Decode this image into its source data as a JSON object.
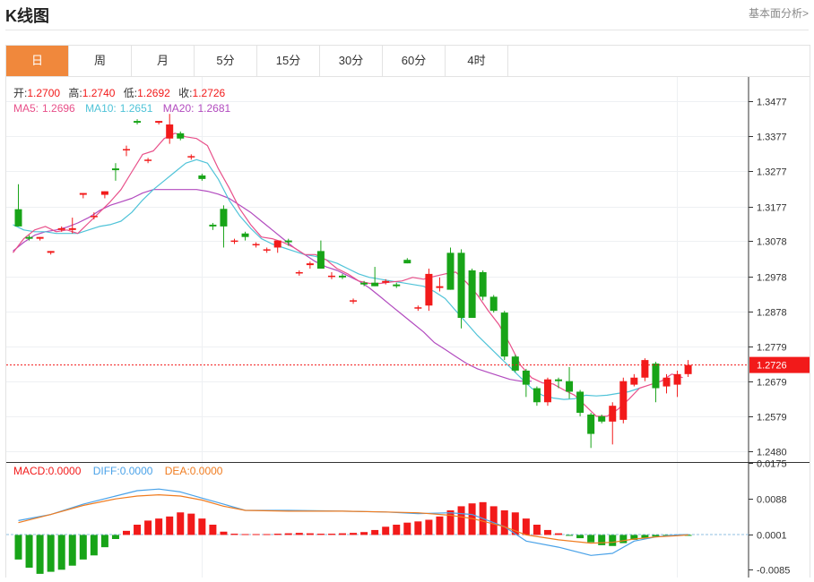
{
  "page": {
    "title": "K线图",
    "link": "基本面分析>"
  },
  "tabs": [
    "日",
    "周",
    "月",
    "5分",
    "15分",
    "30分",
    "60分",
    "4时"
  ],
  "active_tab": 0,
  "colors": {
    "up": "#f21a1a",
    "down": "#18a418",
    "ma5": "#e8508a",
    "ma10": "#4fc3d8",
    "ma20": "#b24bbf",
    "dif": "#4aa2e8",
    "dea": "#f07c20",
    "accent": "#f0883c"
  },
  "ohlc_info": {
    "open_label": "开:",
    "open": "1.2700",
    "high_label": "高:",
    "high": "1.2740",
    "low_label": "低:",
    "low": "1.2692",
    "close_label": "收:",
    "close": "1.2726"
  },
  "ma_info": {
    "ma5_label": "MA5:",
    "ma5": "1.2696",
    "ma10_label": "MA10:",
    "ma10": "1.2651",
    "ma20_label": "MA20:",
    "ma20": "1.2681"
  },
  "macd_info": {
    "macd_label": "MACD:",
    "macd": "0.0000",
    "diff_label": "DIFF:",
    "diff": "0.0000",
    "dea_label": "DEA:",
    "dea": "0.0000"
  },
  "chart_data": [
    {
      "type": "candlestick",
      "y_ticks": [
        "1.3477",
        "1.3377",
        "1.3277",
        "1.3177",
        "1.3078",
        "1.2978",
        "1.2878",
        "1.2779",
        "1.2679",
        "1.2579",
        "1.2480"
      ],
      "ylim": [
        1.245,
        1.3545
      ],
      "current_price": "1.2726",
      "candles": [
        [
          1.3169,
          1.324,
          1.312,
          1.312
        ],
        [
          1.309,
          1.3095,
          1.308,
          1.3085
        ],
        [
          1.3085,
          1.309,
          1.308,
          1.309
        ],
        [
          1.3045,
          1.305,
          1.304,
          1.305
        ],
        [
          1.311,
          1.312,
          1.3105,
          1.3115
        ],
        [
          1.311,
          1.3145,
          1.31,
          1.3115
        ],
        [
          1.321,
          1.3215,
          1.32,
          1.3215
        ],
        [
          1.315,
          1.316,
          1.314,
          1.315
        ],
        [
          1.321,
          1.322,
          1.32,
          1.322
        ],
        [
          1.3285,
          1.33,
          1.325,
          1.328
        ],
        [
          1.334,
          1.335,
          1.332,
          1.334
        ],
        [
          1.342,
          1.3425,
          1.341,
          1.3415
        ],
        [
          1.331,
          1.3315,
          1.33,
          1.331
        ],
        [
          1.3415,
          1.342,
          1.341,
          1.342
        ],
        [
          1.337,
          1.344,
          1.3355,
          1.341
        ],
        [
          1.3385,
          1.339,
          1.3365,
          1.337
        ],
        [
          1.332,
          1.3325,
          1.331,
          1.332
        ],
        [
          1.3265,
          1.327,
          1.325,
          1.3255
        ],
        [
          1.3125,
          1.313,
          1.311,
          1.312
        ],
        [
          1.317,
          1.318,
          1.306,
          1.312
        ],
        [
          1.308,
          1.3085,
          1.307,
          1.308
        ],
        [
          1.31,
          1.3105,
          1.308,
          1.309
        ],
        [
          1.307,
          1.3075,
          1.306,
          1.307
        ],
        [
          1.3055,
          1.306,
          1.3045,
          1.3055
        ],
        [
          1.306,
          1.3075,
          1.3045,
          1.308
        ],
        [
          1.308,
          1.3085,
          1.3065,
          1.3075
        ],
        [
          1.299,
          1.2995,
          1.298,
          1.299
        ],
        [
          1.301,
          1.302,
          1.3,
          1.3015
        ],
        [
          1.305,
          1.308,
          1.3,
          1.3
        ],
        [
          1.298,
          1.299,
          1.297,
          1.298
        ],
        [
          1.298,
          1.2985,
          1.297,
          1.2975
        ],
        [
          1.291,
          1.2915,
          1.29,
          1.291
        ],
        [
          1.296,
          1.2965,
          1.295,
          1.2955
        ],
        [
          1.296,
          1.3005,
          1.295,
          1.295
        ],
        [
          1.296,
          1.297,
          1.2955,
          1.2965
        ],
        [
          1.2955,
          1.296,
          1.2945,
          1.295
        ],
        [
          1.3025,
          1.303,
          1.3015,
          1.3015
        ],
        [
          1.289,
          1.2895,
          1.288,
          1.289
        ],
        [
          1.2895,
          1.3,
          1.288,
          1.2985
        ],
        [
          1.2945,
          1.2975,
          1.2935,
          1.295
        ],
        [
          1.3045,
          1.306,
          1.294,
          1.294
        ],
        [
          1.3045,
          1.3055,
          1.283,
          1.286
        ],
        [
          1.2995,
          1.3,
          1.286,
          1.286
        ],
        [
          1.299,
          1.2995,
          1.291,
          1.292
        ],
        [
          1.292,
          1.2925,
          1.2875,
          1.288
        ],
        [
          1.2875,
          1.288,
          1.274,
          1.275
        ],
        [
          1.275,
          1.2755,
          1.2705,
          1.271
        ],
        [
          1.271,
          1.2715,
          1.2635,
          1.267
        ],
        [
          1.266,
          1.2665,
          1.261,
          1.262
        ],
        [
          1.262,
          1.269,
          1.261,
          1.2685
        ],
        [
          1.2685,
          1.269,
          1.266,
          1.268
        ],
        [
          1.268,
          1.272,
          1.263,
          1.265
        ],
        [
          1.265,
          1.2655,
          1.258,
          1.259
        ],
        [
          1.2585,
          1.259,
          1.249,
          1.253
        ],
        [
          1.258,
          1.2585,
          1.256,
          1.2565
        ],
        [
          1.2565,
          1.262,
          1.25,
          1.261
        ],
        [
          1.257,
          1.269,
          1.256,
          1.268
        ],
        [
          1.267,
          1.27,
          1.2665,
          1.269
        ],
        [
          1.269,
          1.2745,
          1.268,
          1.274
        ],
        [
          1.273,
          1.2735,
          1.262,
          1.266
        ],
        [
          1.2665,
          1.27,
          1.2645,
          1.269
        ],
        [
          1.267,
          1.271,
          1.2635,
          1.27
        ],
        [
          1.27,
          1.274,
          1.2692,
          1.2726
        ]
      ],
      "ma5": [
        [
          -0.5,
          1.3045
        ],
        [
          0.5,
          1.3085
        ],
        [
          1.5,
          1.311
        ],
        [
          2.5,
          1.312
        ],
        [
          3.5,
          1.3105
        ],
        [
          4.5,
          1.311
        ],
        [
          5.5,
          1.31
        ],
        [
          6.5,
          1.313
        ],
        [
          7.5,
          1.316
        ],
        [
          8.5,
          1.319
        ],
        [
          9.5,
          1.3225
        ],
        [
          10.5,
          1.3275
        ],
        [
          11.5,
          1.3325
        ],
        [
          12.5,
          1.3335
        ],
        [
          13.5,
          1.337
        ],
        [
          14.5,
          1.3385
        ],
        [
          15.5,
          1.3375
        ],
        [
          16.5,
          1.337
        ],
        [
          17.5,
          1.335
        ],
        [
          18.5,
          1.3285
        ],
        [
          19.5,
          1.323
        ],
        [
          20.5,
          1.317
        ],
        [
          21.5,
          1.3125
        ],
        [
          22.5,
          1.309
        ],
        [
          23.5,
          1.3085
        ],
        [
          24.5,
          1.3075
        ],
        [
          25.5,
          1.306
        ],
        [
          26.5,
          1.304
        ],
        [
          27.5,
          1.304
        ],
        [
          28.5,
          1.3025
        ],
        [
          29.5,
          1.3
        ],
        [
          30.5,
          1.2985
        ],
        [
          31.5,
          1.2965
        ],
        [
          32.5,
          1.2958
        ],
        [
          33.5,
          1.2958
        ],
        [
          34.5,
          1.2962
        ],
        [
          35.5,
          1.2965
        ],
        [
          36.5,
          1.2975
        ],
        [
          37.5,
          1.297
        ],
        [
          38.5,
          1.2978
        ],
        [
          39.5,
          1.2985
        ],
        [
          40.5,
          1.299
        ],
        [
          41.5,
          1.296
        ],
        [
          42.5,
          1.2925
        ],
        [
          43.5,
          1.288
        ],
        [
          44.5,
          1.284
        ],
        [
          45.5,
          1.2785
        ],
        [
          46.5,
          1.2725
        ],
        [
          47.5,
          1.269
        ],
        [
          48.5,
          1.2675
        ],
        [
          49.5,
          1.2672
        ],
        [
          50.5,
          1.2655
        ],
        [
          51.5,
          1.264
        ],
        [
          52.5,
          1.261
        ],
        [
          53.5,
          1.258
        ],
        [
          54.5,
          1.258
        ],
        [
          55.5,
          1.26
        ],
        [
          56.5,
          1.2628
        ],
        [
          57.5,
          1.266
        ],
        [
          58.5,
          1.267
        ],
        [
          59.5,
          1.268
        ],
        [
          60.5,
          1.27
        ],
        [
          61.5,
          1.269
        ]
      ],
      "ma10": [
        [
          -0.5,
          1.3125
        ],
        [
          0.5,
          1.311
        ],
        [
          1.5,
          1.3105
        ],
        [
          2.5,
          1.3105
        ],
        [
          3.5,
          1.31
        ],
        [
          4.5,
          1.31
        ],
        [
          5.5,
          1.31
        ],
        [
          6.5,
          1.311
        ],
        [
          7.5,
          1.312
        ],
        [
          8.5,
          1.3125
        ],
        [
          9.5,
          1.3135
        ],
        [
          10.5,
          1.316
        ],
        [
          11.5,
          1.3195
        ],
        [
          12.5,
          1.3225
        ],
        [
          13.5,
          1.325
        ],
        [
          14.5,
          1.3275
        ],
        [
          15.5,
          1.33
        ],
        [
          16.5,
          1.331
        ],
        [
          17.5,
          1.33
        ],
        [
          18.5,
          1.3255
        ],
        [
          19.5,
          1.3195
        ],
        [
          20.5,
          1.315
        ],
        [
          21.5,
          1.3115
        ],
        [
          22.5,
          1.3085
        ],
        [
          23.5,
          1.307
        ],
        [
          24.5,
          1.306
        ],
        [
          25.5,
          1.305
        ],
        [
          26.5,
          1.304
        ],
        [
          27.5,
          1.3035
        ],
        [
          28.5,
          1.3025
        ],
        [
          29.5,
          1.3015
        ],
        [
          30.5,
          1.3
        ],
        [
          31.5,
          1.2985
        ],
        [
          32.5,
          1.2975
        ],
        [
          33.5,
          1.297
        ],
        [
          34.5,
          1.2965
        ],
        [
          35.5,
          1.296
        ],
        [
          36.5,
          1.2955
        ],
        [
          37.5,
          1.295
        ],
        [
          38.5,
          1.2935
        ],
        [
          39.5,
          1.2915
        ],
        [
          40.5,
          1.288
        ],
        [
          41.5,
          1.2845
        ],
        [
          42.5,
          1.281
        ],
        [
          43.5,
          1.278
        ],
        [
          44.5,
          1.275
        ],
        [
          45.5,
          1.272
        ],
        [
          46.5,
          1.269
        ],
        [
          47.5,
          1.266
        ],
        [
          48.5,
          1.264
        ],
        [
          49.5,
          1.2632
        ],
        [
          50.5,
          1.2628
        ],
        [
          51.5,
          1.263
        ],
        [
          52.5,
          1.264
        ],
        [
          53.5,
          1.2638
        ],
        [
          54.5,
          1.264
        ],
        [
          55.5,
          1.2645
        ],
        [
          56.5,
          1.265
        ],
        [
          57.5,
          1.266
        ]
      ],
      "ma20": [
        [
          -0.5,
          1.305
        ],
        [
          0.5,
          1.3075
        ],
        [
          1.5,
          1.3095
        ],
        [
          2.5,
          1.3105
        ],
        [
          3.5,
          1.311
        ],
        [
          4.5,
          1.3118
        ],
        [
          5.5,
          1.313
        ],
        [
          6.5,
          1.3145
        ],
        [
          7.5,
          1.3165
        ],
        [
          8.5,
          1.318
        ],
        [
          9.5,
          1.319
        ],
        [
          10.5,
          1.32
        ],
        [
          11.5,
          1.3215
        ],
        [
          12.5,
          1.3225
        ],
        [
          13.5,
          1.3225
        ],
        [
          14.5,
          1.3225
        ],
        [
          15.5,
          1.3225
        ],
        [
          16.5,
          1.3225
        ],
        [
          17.5,
          1.322
        ],
        [
          18.5,
          1.3212
        ],
        [
          19.5,
          1.32
        ],
        [
          20.5,
          1.318
        ],
        [
          21.5,
          1.316
        ],
        [
          22.5,
          1.3135
        ],
        [
          23.5,
          1.311
        ],
        [
          24.5,
          1.3085
        ],
        [
          25.5,
          1.306
        ],
        [
          26.5,
          1.304
        ],
        [
          27.5,
          1.302
        ],
        [
          28.5,
          1.3005
        ],
        [
          29.5,
          1.2995
        ],
        [
          30.5,
          1.298
        ],
        [
          31.5,
          1.2965
        ],
        [
          32.5,
          1.2945
        ],
        [
          33.5,
          1.292
        ],
        [
          34.5,
          1.2895
        ],
        [
          35.5,
          1.287
        ],
        [
          36.5,
          1.2845
        ],
        [
          37.5,
          1.282
        ],
        [
          38.5,
          1.279
        ],
        [
          39.5,
          1.277
        ],
        [
          40.5,
          1.275
        ],
        [
          41.5,
          1.273
        ],
        [
          42.5,
          1.2715
        ],
        [
          43.5,
          1.2705
        ],
        [
          44.5,
          1.2695
        ],
        [
          45.5,
          1.2685
        ],
        [
          46.5,
          1.268
        ],
        [
          47.5,
          1.268
        ]
      ]
    },
    {
      "type": "bar",
      "name": "MACD",
      "y_ticks": [
        "0.0175",
        "0.0088",
        "0.0001",
        "-0.0085"
      ],
      "ylim": [
        -0.0104,
        0.0178
      ],
      "values": [
        -0.006,
        -0.008,
        -0.0095,
        -0.009,
        -0.0085,
        -0.0075,
        -0.006,
        -0.005,
        -0.003,
        -0.001,
        0.001,
        0.0025,
        0.0035,
        0.004,
        0.0045,
        0.0055,
        0.0052,
        0.004,
        0.0025,
        0.0008,
        0.0003,
        0.0002,
        0.0002,
        0.0002,
        0.0003,
        0.0004,
        0.0005,
        0.0004,
        0.0003,
        0.0003,
        0.0004,
        0.0005,
        0.0007,
        0.0012,
        0.002,
        0.0025,
        0.003,
        0.0033,
        0.0037,
        0.0045,
        0.006,
        0.007,
        0.0077,
        0.008,
        0.007,
        0.006,
        0.0055,
        0.004,
        0.0025,
        0.0012,
        0.0004,
        -0.0001,
        -0.0008,
        -0.0018,
        -0.0025,
        -0.0027,
        -0.002,
        -0.0012,
        -0.0007,
        -0.0004,
        -0.0003,
        -0.0002,
        -0.0002
      ],
      "dif": [
        [
          0,
          0.0035
        ],
        [
          3,
          0.005
        ],
        [
          6,
          0.0075
        ],
        [
          9,
          0.0095
        ],
        [
          11,
          0.0108
        ],
        [
          13,
          0.0112
        ],
        [
          15,
          0.0105
        ],
        [
          17,
          0.009
        ],
        [
          19,
          0.0075
        ],
        [
          21,
          0.006
        ],
        [
          25,
          0.006
        ],
        [
          30,
          0.0058
        ],
        [
          34,
          0.0056
        ],
        [
          37,
          0.0052
        ],
        [
          40,
          0.0054
        ],
        [
          42,
          0.005
        ],
        [
          45,
          0.002
        ],
        [
          47,
          -0.0015
        ],
        [
          50,
          -0.003
        ],
        [
          53,
          -0.005
        ],
        [
          55,
          -0.0045
        ],
        [
          57,
          -0.0015
        ],
        [
          59,
          -0.0005
        ],
        [
          61,
          0.0
        ],
        [
          62,
          0.0001
        ]
      ],
      "dea": [
        [
          0,
          0.003
        ],
        [
          3,
          0.005
        ],
        [
          6,
          0.0072
        ],
        [
          9,
          0.0088
        ],
        [
          11,
          0.0095
        ],
        [
          13,
          0.0098
        ],
        [
          15,
          0.0095
        ],
        [
          17,
          0.0085
        ],
        [
          19,
          0.007
        ],
        [
          21,
          0.006
        ],
        [
          25,
          0.0058
        ],
        [
          30,
          0.0058
        ],
        [
          34,
          0.0056
        ],
        [
          37,
          0.0054
        ],
        [
          40,
          0.0048
        ],
        [
          42,
          0.004
        ],
        [
          45,
          0.002
        ],
        [
          47,
          0.0
        ],
        [
          50,
          -0.0012
        ],
        [
          53,
          -0.002
        ],
        [
          55,
          -0.0018
        ],
        [
          57,
          -0.001
        ],
        [
          59,
          -0.0005
        ],
        [
          61,
          -0.0002
        ],
        [
          62,
          0.0
        ]
      ]
    }
  ]
}
